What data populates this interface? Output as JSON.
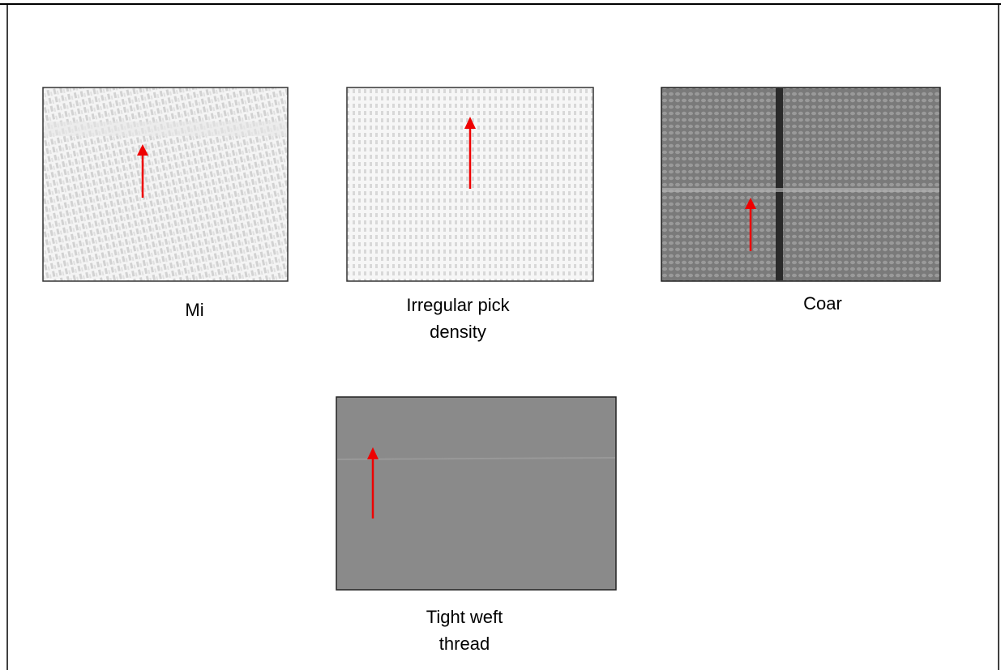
{
  "panels": [
    {
      "caption": "Mi"
    },
    {
      "caption": "Irregular pick density"
    },
    {
      "caption": "Coar"
    },
    {
      "caption": "Tight weft thread"
    }
  ]
}
